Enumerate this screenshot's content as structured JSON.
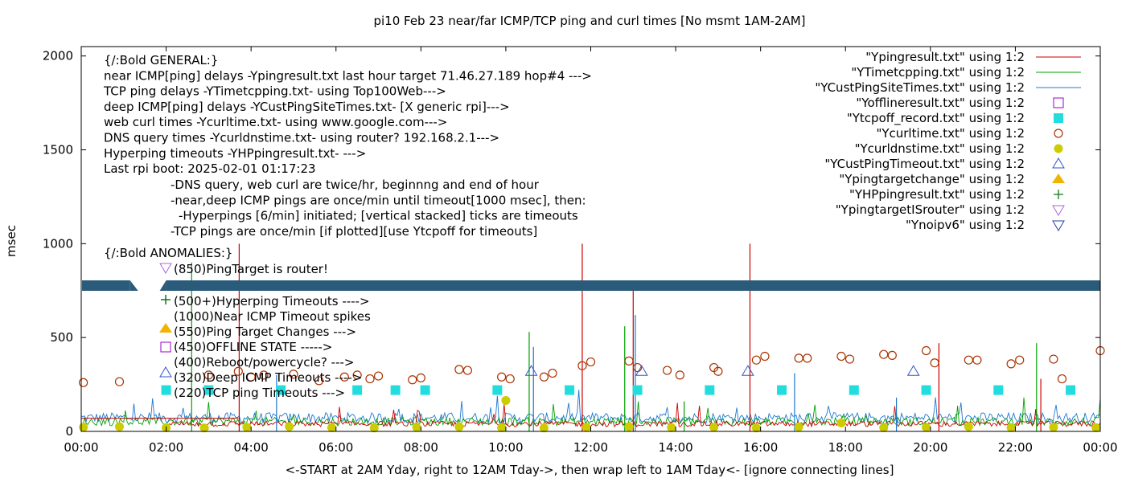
{
  "chart_data": {
    "type": "line",
    "title": "pi10 Feb 23  near/far ICMP/TCP ping and curl times [No msmt 1AM-2AM]",
    "xlabel": "<-START at 2AM Yday, right to 12AM Tday->, then wrap left to 1AM Tday<- [ignore connecting lines]",
    "ylabel": "msec",
    "xlim": [
      0,
      24
    ],
    "ylim": [
      0,
      2050
    ],
    "x_ticks": [
      0,
      2,
      4,
      6,
      8,
      10,
      12,
      14,
      16,
      18,
      20,
      22,
      24
    ],
    "x_tick_labels": [
      "00:00",
      "02:00",
      "04:00",
      "06:00",
      "08:00",
      "10:00",
      "12:00",
      "14:00",
      "16:00",
      "18:00",
      "20:00",
      "22:00",
      "00:00"
    ],
    "y_ticks": [
      0,
      500,
      1000,
      1500,
      2000
    ],
    "y_tick_labels": [
      "0",
      "500",
      "1000",
      "1500",
      "2000"
    ],
    "grid": false,
    "legend_placement": "top-right",
    "legend": [
      {
        "label": "\"Ypingresult.txt\" using 1:2",
        "style": "line",
        "color": "#cc0000"
      },
      {
        "label": "\"YTimetcpping.txt\" using 1:2",
        "style": "line",
        "color": "#00a000"
      },
      {
        "label": "\"YCustPingSiteTimes.txt\" using 1:2",
        "style": "line",
        "color": "#1f78d0"
      },
      {
        "label": "\"Yofflineresult.txt\" using 1:2",
        "style": "open-square",
        "color": "#9900cc"
      },
      {
        "label": "\"Ytcpoff_record.txt\" using 1:2",
        "style": "filled-square",
        "color": "#22dddd"
      },
      {
        "label": "\"Ycurltime.txt\" using 1:2",
        "style": "open-circle",
        "color": "#aa3300"
      },
      {
        "label": "\"Ycurldnstime.txt\" using 1:2",
        "style": "filled-circle",
        "color": "#cccc00"
      },
      {
        "label": "\"YCustPingTimeout.txt\" using 1:2",
        "style": "open-triangle-up",
        "color": "#3355cc"
      },
      {
        "label": "\"Ypingtargetchange\" using 1:2",
        "style": "filled-triangle-up",
        "color": "#f0b400"
      },
      {
        "label": "\"YHPpingresult.txt\" using 1:2",
        "style": "plus",
        "color": "#117711"
      },
      {
        "label": "\"YpingtargetISrouter\" using 1:2",
        "style": "open-triangle-down",
        "color": "#aa66dd"
      },
      {
        "label": "\"Ynoipv6\" using 1:2",
        "style": "open-triangle-down",
        "color": "#224499"
      }
    ],
    "annotation_lines": [
      "{/:Bold GENERAL:}",
      "near ICMP[ping] delays -Ypingresult.txt last hour target 71.46.27.189 hop#4 --->",
      "TCP ping delays -YTimetcpping.txt- using Top100Web--->",
      "deep ICMP[ping] delays -YCustPingSiteTimes.txt- [X generic rpi]--->",
      "web curl times -Ycurltime.txt- using www.google.com--->",
      "DNS query times -Ycurldnstime.txt- using router? 192.168.2.1--->",
      "Hyperping timeouts -YHPpingresult.txt- --->",
      "Last rpi boot: 2025-02-01 01:17:23"
    ],
    "annotation_notes": [
      "-DNS query, web curl are twice/hr, beginnng and end of hour",
      "-near,deep ICMP pings are once/min until timeout[1000 msec], then:",
      "-Hyperpings [6/min] initiated; [vertical stacked] ticks are timeouts",
      "-TCP pings are once/min [if plotted][use Ytcpoff for timeouts]"
    ],
    "anomalies_header": "{/:Bold ANOMALIES:}",
    "anomalies": [
      "(850)PingTarget is router!",
      "(500+)Hyperping Timeouts ---->",
      "(1000)Near ICMP Timeout spikes",
      "(550)Ping Target Changes --->",
      "(450)OFFLINE STATE ----->",
      "(400)Reboot/powercycle? --->",
      "(320)Deep ICMP Timeouts ---->",
      "(220)TCP ping Timeouts --->"
    ],
    "noipv6_band_y": 780,
    "curl_times": {
      "x": [
        0.05,
        0.9,
        3.0,
        3.7,
        4.0,
        4.3,
        5.0,
        5.6,
        6.2,
        6.5,
        6.8,
        7.0,
        7.8,
        8.0,
        8.9,
        9.1,
        9.9,
        10.1,
        10.9,
        11.1,
        11.8,
        12.0,
        12.9,
        13.1,
        13.8,
        14.1,
        14.9,
        15.0,
        15.9,
        16.1,
        16.9,
        17.1,
        17.9,
        18.1,
        18.9,
        19.1,
        19.9,
        20.1,
        20.9,
        21.1,
        21.9,
        22.1,
        22.9,
        23.1,
        24.0
      ],
      "y": [
        260,
        265,
        300,
        320,
        290,
        300,
        305,
        270,
        290,
        300,
        280,
        295,
        275,
        285,
        330,
        325,
        290,
        280,
        290,
        310,
        350,
        370,
        375,
        340,
        325,
        300,
        340,
        320,
        380,
        400,
        390,
        390,
        400,
        385,
        410,
        405,
        430,
        365,
        380,
        380,
        360,
        380,
        385,
        280,
        430
      ]
    },
    "dns_times": {
      "x": [
        0.05,
        0.9,
        2.0,
        2.9,
        3.9,
        4.9,
        5.9,
        6.9,
        7.9,
        8.9,
        9.9,
        10.0,
        10.9,
        11.9,
        12.9,
        13.9,
        14.9,
        15.9,
        16.9,
        17.9,
        18.9,
        19.9,
        20.9,
        21.9,
        22.9,
        23.9
      ],
      "y": [
        22,
        25,
        20,
        18,
        22,
        25,
        20,
        18,
        22,
        24,
        20,
        165,
        18,
        22,
        25,
        20,
        22,
        18,
        24,
        45,
        20,
        22,
        25,
        20,
        22,
        20
      ]
    },
    "tcp_timeouts": {
      "x": [
        2.0,
        3.0,
        4.7,
        6.5,
        7.4,
        8.1,
        9.8,
        11.5,
        13.1,
        14.8,
        16.5,
        18.2,
        19.9,
        21.6,
        23.3
      ],
      "y": [
        220,
        220,
        220,
        220,
        220,
        220,
        220,
        220,
        220,
        220,
        220,
        220,
        220,
        220,
        220
      ]
    },
    "deep_icmp_timeouts": {
      "x": [
        10.6,
        13.2,
        15.7,
        19.6
      ],
      "y": [
        320,
        320,
        320,
        320
      ]
    },
    "near_icmp_spikes": {
      "x": [
        3.72,
        11.8,
        13.0,
        15.75,
        20.2,
        22.6
      ],
      "y": [
        1000,
        1000,
        780,
        1000,
        470,
        280
      ]
    }
  }
}
